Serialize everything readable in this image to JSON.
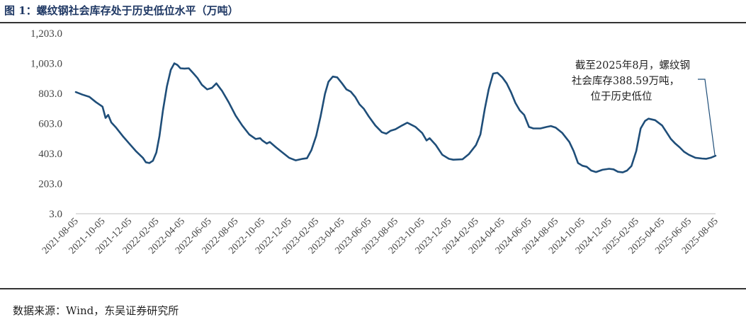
{
  "figure": {
    "title": "图 1：螺纹钢社会库存处于历史低位水平（万吨）",
    "source": "数据来源：Wind，东吴证券研究所"
  },
  "chart_data": {
    "type": "line",
    "title": "图 1：螺纹钢社会库存处于历史低位水平（万吨）",
    "xlabel": "",
    "ylabel": "",
    "ylim": [
      3.0,
      1203.0
    ],
    "yticks": [
      "1,203.0",
      "1,003.0",
      "803.0",
      "603.0",
      "403.0",
      "203.0",
      "3.0"
    ],
    "ytick_values": [
      1203,
      1003,
      803,
      603,
      403,
      203,
      3
    ],
    "xticks": [
      "2021-08-05",
      "2021-10-05",
      "2021-12-05",
      "2022-02-05",
      "2022-04-05",
      "2022-06-05",
      "2022-08-05",
      "2022-10-05",
      "2022-12-05",
      "2023-02-05",
      "2023-04-05",
      "2023-06-05",
      "2023-08-05",
      "2023-10-05",
      "2023-12-05",
      "2024-02-05",
      "2024-04-05",
      "2024-06-05",
      "2024-08-05",
      "2024-10-05",
      "2024-12-05",
      "2025-02-05",
      "2025-04-05",
      "2025-06-05",
      "2025-08-05"
    ],
    "grid": false,
    "legend": "none",
    "line_color": "#1f4e79",
    "annotation": {
      "lines": [
        "截至2025年8月，螺纹钢",
        "社会库存388.59万吨，",
        "位于历史低位"
      ],
      "value": 388.59,
      "date": "2025-08"
    },
    "series": [
      {
        "name": "",
        "points": [
          [
            "2021-08-05",
            812
          ],
          [
            "2021-08-20",
            795
          ],
          [
            "2021-09-05",
            780
          ],
          [
            "2021-09-20",
            745
          ],
          [
            "2021-10-05",
            715
          ],
          [
            "2021-10-12",
            640
          ],
          [
            "2021-10-18",
            660
          ],
          [
            "2021-10-25",
            610
          ],
          [
            "2021-11-05",
            575
          ],
          [
            "2021-11-20",
            520
          ],
          [
            "2021-12-05",
            470
          ],
          [
            "2021-12-20",
            420
          ],
          [
            "2022-01-05",
            375
          ],
          [
            "2022-01-12",
            345
          ],
          [
            "2022-01-20",
            340
          ],
          [
            "2022-01-28",
            355
          ],
          [
            "2022-02-05",
            410
          ],
          [
            "2022-02-12",
            520
          ],
          [
            "2022-02-20",
            690
          ],
          [
            "2022-03-01",
            850
          ],
          [
            "2022-03-10",
            960
          ],
          [
            "2022-03-18",
            1003
          ],
          [
            "2022-03-25",
            992
          ],
          [
            "2022-04-01",
            970
          ],
          [
            "2022-04-10",
            968
          ],
          [
            "2022-04-20",
            970
          ],
          [
            "2022-05-01",
            935
          ],
          [
            "2022-05-10",
            905
          ],
          [
            "2022-05-20",
            860
          ],
          [
            "2022-06-01",
            830
          ],
          [
            "2022-06-12",
            840
          ],
          [
            "2022-06-22",
            870
          ],
          [
            "2022-07-05",
            820
          ],
          [
            "2022-07-20",
            745
          ],
          [
            "2022-08-05",
            655
          ],
          [
            "2022-08-20",
            590
          ],
          [
            "2022-09-05",
            530
          ],
          [
            "2022-09-20",
            500
          ],
          [
            "2022-09-30",
            505
          ],
          [
            "2022-10-05",
            490
          ],
          [
            "2022-10-15",
            470
          ],
          [
            "2022-10-22",
            480
          ],
          [
            "2022-11-05",
            445
          ],
          [
            "2022-11-20",
            410
          ],
          [
            "2022-12-05",
            375
          ],
          [
            "2022-12-20",
            358
          ],
          [
            "2023-01-05",
            368
          ],
          [
            "2023-01-15",
            372
          ],
          [
            "2023-01-25",
            425
          ],
          [
            "2023-02-05",
            520
          ],
          [
            "2023-02-15",
            650
          ],
          [
            "2023-02-25",
            800
          ],
          [
            "2023-03-05",
            880
          ],
          [
            "2023-03-15",
            915
          ],
          [
            "2023-03-25",
            910
          ],
          [
            "2023-04-05",
            870
          ],
          [
            "2023-04-15",
            830
          ],
          [
            "2023-04-25",
            815
          ],
          [
            "2023-05-05",
            780
          ],
          [
            "2023-05-15",
            730
          ],
          [
            "2023-05-25",
            700
          ],
          [
            "2023-06-05",
            650
          ],
          [
            "2023-06-20",
            590
          ],
          [
            "2023-07-05",
            545
          ],
          [
            "2023-07-15",
            535
          ],
          [
            "2023-07-25",
            555
          ],
          [
            "2023-08-05",
            565
          ],
          [
            "2023-08-20",
            590
          ],
          [
            "2023-09-01",
            608
          ],
          [
            "2023-09-10",
            595
          ],
          [
            "2023-09-20",
            580
          ],
          [
            "2023-10-05",
            540
          ],
          [
            "2023-10-15",
            490
          ],
          [
            "2023-10-22",
            505
          ],
          [
            "2023-11-05",
            460
          ],
          [
            "2023-11-20",
            395
          ],
          [
            "2023-12-05",
            368
          ],
          [
            "2023-12-15",
            362
          ],
          [
            "2024-01-05",
            365
          ],
          [
            "2024-01-20",
            400
          ],
          [
            "2024-02-05",
            460
          ],
          [
            "2024-02-15",
            530
          ],
          [
            "2024-02-25",
            700
          ],
          [
            "2024-03-05",
            830
          ],
          [
            "2024-03-15",
            935
          ],
          [
            "2024-03-25",
            940
          ],
          [
            "2024-04-05",
            910
          ],
          [
            "2024-04-15",
            870
          ],
          [
            "2024-04-25",
            810
          ],
          [
            "2024-05-05",
            740
          ],
          [
            "2024-05-15",
            690
          ],
          [
            "2024-05-25",
            660
          ],
          [
            "2024-06-05",
            580
          ],
          [
            "2024-06-15",
            570
          ],
          [
            "2024-07-01",
            570
          ],
          [
            "2024-07-15",
            580
          ],
          [
            "2024-07-25",
            586
          ],
          [
            "2024-08-05",
            575
          ],
          [
            "2024-08-20",
            540
          ],
          [
            "2024-09-05",
            480
          ],
          [
            "2024-09-15",
            420
          ],
          [
            "2024-09-25",
            340
          ],
          [
            "2024-10-05",
            322
          ],
          [
            "2024-10-15",
            315
          ],
          [
            "2024-10-25",
            290
          ],
          [
            "2024-11-05",
            280
          ],
          [
            "2024-11-20",
            295
          ],
          [
            "2024-12-05",
            302
          ],
          [
            "2024-12-15",
            298
          ],
          [
            "2024-12-25",
            282
          ],
          [
            "2025-01-05",
            278
          ],
          [
            "2025-01-15",
            290
          ],
          [
            "2025-01-25",
            320
          ],
          [
            "2025-02-05",
            420
          ],
          [
            "2025-02-15",
            570
          ],
          [
            "2025-02-25",
            620
          ],
          [
            "2025-03-05",
            635
          ],
          [
            "2025-03-20",
            625
          ],
          [
            "2025-04-05",
            590
          ],
          [
            "2025-04-15",
            545
          ],
          [
            "2025-04-25",
            500
          ],
          [
            "2025-05-05",
            470
          ],
          [
            "2025-05-15",
            445
          ],
          [
            "2025-05-25",
            415
          ],
          [
            "2025-06-05",
            395
          ],
          [
            "2025-06-20",
            375
          ],
          [
            "2025-07-05",
            370
          ],
          [
            "2025-07-15",
            368
          ],
          [
            "2025-07-25",
            375
          ],
          [
            "2025-08-05",
            388.59
          ]
        ]
      }
    ]
  }
}
